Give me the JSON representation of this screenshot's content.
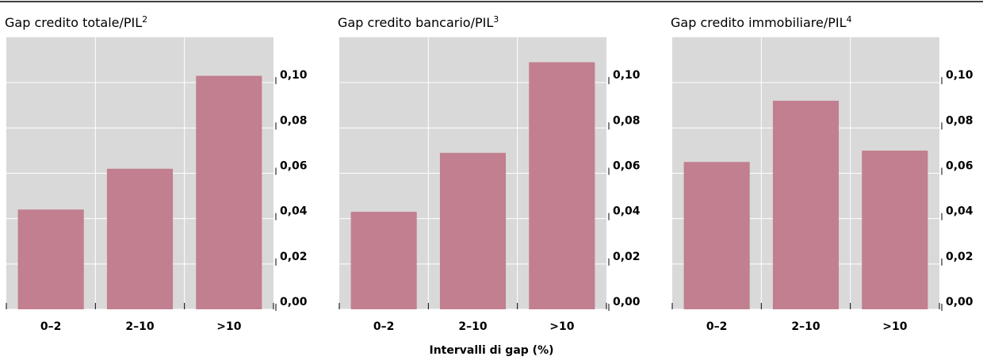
{
  "x_label": "Intervalli di gap (%)",
  "chart_data": [
    {
      "type": "bar",
      "title": "Gap credito totale/PIL",
      "title_note": "2",
      "categories": [
        "0–2",
        "2–10",
        ">10"
      ],
      "values": [
        0.044,
        0.062,
        0.103
      ],
      "color": "#c17f8f",
      "ylim": [
        0,
        0.12
      ],
      "yticks": [
        {
          "value": 0,
          "label": "0,00"
        },
        {
          "value": 0.02,
          "label": "0,02"
        },
        {
          "value": 0.04,
          "label": "0,04"
        },
        {
          "value": 0.06,
          "label": "0,06"
        },
        {
          "value": 0.08,
          "label": "0,08"
        },
        {
          "value": 0.1,
          "label": "0,10"
        }
      ],
      "grid": true
    },
    {
      "type": "bar",
      "title": "Gap credito bancario/PIL",
      "title_note": "3",
      "categories": [
        "0–2",
        "2–10",
        ">10"
      ],
      "values": [
        0.043,
        0.069,
        0.109
      ],
      "color": "#c17f8f",
      "ylim": [
        0,
        0.12
      ],
      "yticks": [
        {
          "value": 0,
          "label": "0,00"
        },
        {
          "value": 0.02,
          "label": "0,02"
        },
        {
          "value": 0.04,
          "label": "0,04"
        },
        {
          "value": 0.06,
          "label": "0,06"
        },
        {
          "value": 0.08,
          "label": "0,08"
        },
        {
          "value": 0.1,
          "label": "0,10"
        }
      ],
      "grid": true
    },
    {
      "type": "bar",
      "title": "Gap credito immobiliare/PIL",
      "title_note": "4",
      "categories": [
        "0–2",
        "2–10",
        ">10"
      ],
      "values": [
        0.065,
        0.092,
        0.07
      ],
      "color": "#c17f8f",
      "ylim": [
        0,
        0.12
      ],
      "yticks": [
        {
          "value": 0,
          "label": "0,00"
        },
        {
          "value": 0.02,
          "label": "0,02"
        },
        {
          "value": 0.04,
          "label": "0,04"
        },
        {
          "value": 0.06,
          "label": "0,06"
        },
        {
          "value": 0.08,
          "label": "0,08"
        },
        {
          "value": 0.1,
          "label": "0,10"
        }
      ],
      "grid": true
    }
  ]
}
